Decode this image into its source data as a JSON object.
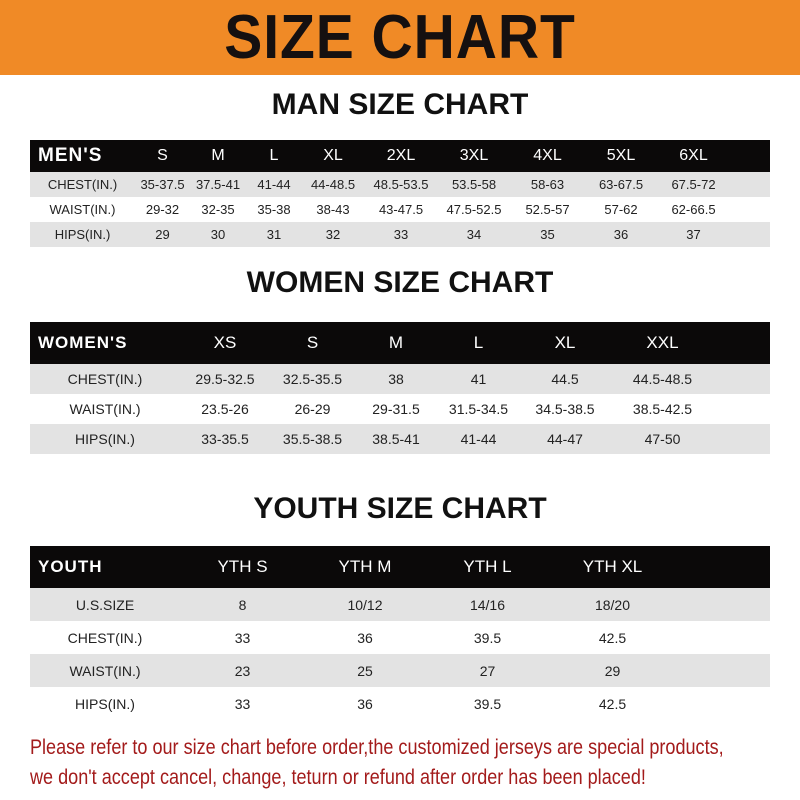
{
  "banner_title": "SIZE CHART",
  "accent_color": "#f08a26",
  "men": {
    "title": "MAN SIZE CHART",
    "header": [
      "MEN'S",
      "S",
      "M",
      "L",
      "XL",
      "2XL",
      "3XL",
      "4XL",
      "5XL",
      "6XL"
    ],
    "rows": [
      [
        "CHEST(IN.)",
        "35-37.5",
        "37.5-41",
        "41-44",
        "44-48.5",
        "48.5-53.5",
        "53.5-58",
        "58-63",
        "63-67.5",
        "67.5-72"
      ],
      [
        "WAIST(IN.)",
        "29-32",
        "32-35",
        "35-38",
        "38-43",
        "43-47.5",
        "47.5-52.5",
        "52.5-57",
        "57-62",
        "62-66.5"
      ],
      [
        "HIPS(IN.)",
        "29",
        "30",
        "31",
        "32",
        "33",
        "34",
        "35",
        "36",
        "37"
      ]
    ]
  },
  "women": {
    "title": "WOMEN SIZE CHART",
    "header": [
      "WOMEN'S",
      "XS",
      "S",
      "M",
      "L",
      "XL",
      "XXL"
    ],
    "rows": [
      [
        "CHEST(IN.)",
        "29.5-32.5",
        "32.5-35.5",
        "38",
        "41",
        "44.5",
        "44.5-48.5"
      ],
      [
        "WAIST(IN.)",
        "23.5-26",
        "26-29",
        "29-31.5",
        "31.5-34.5",
        "34.5-38.5",
        "38.5-42.5"
      ],
      [
        "HIPS(IN.)",
        "33-35.5",
        "35.5-38.5",
        "38.5-41",
        "41-44",
        "44-47",
        "47-50"
      ]
    ]
  },
  "youth": {
    "title": "YOUTH SIZE CHART",
    "header": [
      "YOUTH",
      "YTH S",
      "YTH M",
      "YTH L",
      "YTH XL"
    ],
    "rows": [
      [
        "U.S.SIZE",
        "8",
        "10/12",
        "14/16",
        "18/20"
      ],
      [
        "CHEST(IN.)",
        "33",
        "36",
        "39.5",
        "42.5"
      ],
      [
        "WAIST(IN.)",
        "23",
        "25",
        "27",
        "29"
      ],
      [
        "HIPS(IN.)",
        "33",
        "36",
        "39.5",
        "42.5"
      ]
    ]
  },
  "footer": {
    "line1": "Please refer to our size chart before order,the customized jerseys are special products,",
    "line2": "we don't accept cancel, change, teturn or refund after order has been placed!"
  }
}
